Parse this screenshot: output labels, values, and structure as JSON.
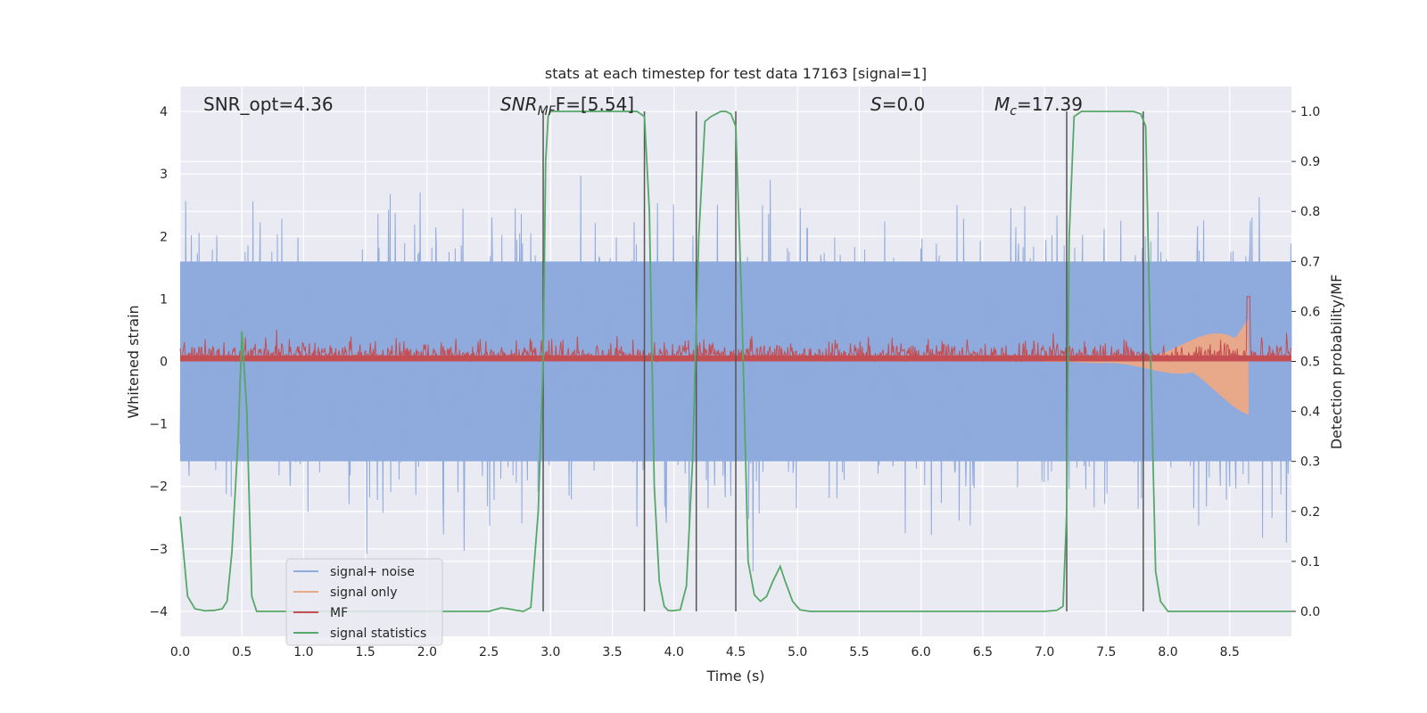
{
  "chart_data": {
    "type": "line",
    "title": "stats at each timestep for test data 17163 [signal=1]",
    "xlabel": "Time (s)",
    "ylabel": "Whitened strain",
    "y2label": "Detection probability/MF",
    "xlim": [
      0.0,
      9.0
    ],
    "ylim": [
      -4.4,
      4.4
    ],
    "y2lim": [
      -0.05,
      1.05
    ],
    "xticks": [
      0.0,
      0.5,
      1.0,
      1.5,
      2.0,
      2.5,
      3.0,
      3.5,
      4.0,
      4.5,
      5.0,
      5.5,
      6.0,
      6.5,
      7.0,
      7.5,
      8.0,
      8.5
    ],
    "xtick_labels": [
      "0.0",
      "0.5",
      "1.0",
      "1.5",
      "2.0",
      "2.5",
      "3.0",
      "3.5",
      "4.0",
      "4.5",
      "5.0",
      "5.5",
      "6.0",
      "6.5",
      "7.0",
      "7.5",
      "8.0",
      "8.5"
    ],
    "yticks": [
      -4,
      -3,
      -2,
      -1,
      0,
      1,
      2,
      3,
      4
    ],
    "ytick_labels": [
      "−4",
      "−3",
      "−2",
      "−1",
      "0",
      "1",
      "2",
      "3",
      "4"
    ],
    "y2ticks": [
      0.0,
      0.1,
      0.2,
      0.3,
      0.4,
      0.5,
      0.6,
      0.7,
      0.8,
      0.9,
      1.0
    ],
    "y2tick_labels": [
      "0.0",
      "0.1",
      "0.2",
      "0.3",
      "0.4",
      "0.5",
      "0.6",
      "0.7",
      "0.8",
      "0.9",
      "1.0"
    ],
    "grid": true,
    "legend_position": "lower-left",
    "annotations": {
      "snr_opt": "SNR_opt=4.36",
      "snr_mf_main": "SNR",
      "snr_mf_sub": "MF",
      "snr_mf_value": "F=[5.54]",
      "s_main": "S",
      "s_value": "=0.0",
      "mc_main": "M",
      "mc_sub": "c",
      "mc_value": "=17.39"
    },
    "series": [
      {
        "name": "signal+ noise",
        "color": "#8faadc",
        "axis": "left",
        "style": "noise band",
        "envelope_upper": 2.5,
        "envelope_lower": -2.5,
        "core_band": [
          -1.6,
          1.6
        ],
        "max_spike": 4.0
      },
      {
        "name": "signal only",
        "color": "#e8a98a",
        "axis": "left",
        "style": "chirp",
        "start_x": 7.0,
        "end_x": 8.65,
        "final_amplitude": 0.9
      },
      {
        "name": "MF",
        "color": "#c44e52",
        "axis": "right",
        "style": "noise band",
        "baseline": 0.5,
        "typical_max": 0.555,
        "max_value": 0.63
      },
      {
        "name": "signal statistics",
        "color": "#55a868",
        "axis": "right",
        "x": [
          0.0,
          0.06,
          0.12,
          0.2,
          0.28,
          0.34,
          0.38,
          0.42,
          0.47,
          0.5,
          0.54,
          0.58,
          0.62,
          0.7,
          1.0,
          1.5,
          2.0,
          2.5,
          2.6,
          2.66,
          2.72,
          2.78,
          2.84,
          2.9,
          2.94,
          2.96,
          2.98,
          3.0,
          3.05,
          3.1,
          3.5,
          3.62,
          3.7,
          3.76,
          3.8,
          3.84,
          3.88,
          3.92,
          3.95,
          3.98,
          4.05,
          4.1,
          4.15,
          4.2,
          4.25,
          4.3,
          4.38,
          4.42,
          4.46,
          4.5,
          4.55,
          4.6,
          4.65,
          4.7,
          4.75,
          4.8,
          4.86,
          4.9,
          4.96,
          5.02,
          5.1,
          5.5,
          6.0,
          6.5,
          7.0,
          7.1,
          7.15,
          7.18,
          7.2,
          7.24,
          7.3,
          7.6,
          7.72,
          7.78,
          7.82,
          7.86,
          7.9,
          7.94,
          8.0,
          8.5,
          9.0
        ],
        "y": [
          0.19,
          0.03,
          0.005,
          0.001,
          0.002,
          0.005,
          0.02,
          0.12,
          0.35,
          0.56,
          0.4,
          0.03,
          0.0,
          0.0,
          0.0,
          0.0,
          0.0,
          0.0,
          0.007,
          0.005,
          0.002,
          0.0,
          0.008,
          0.2,
          0.5,
          0.9,
          0.99,
          1.0,
          1.0,
          1.0,
          1.0,
          1.0,
          1.0,
          0.99,
          0.8,
          0.25,
          0.06,
          0.01,
          0.002,
          0.001,
          0.003,
          0.05,
          0.3,
          0.75,
          0.98,
          0.99,
          1.0,
          1.0,
          0.995,
          0.97,
          0.6,
          0.1,
          0.033,
          0.02,
          0.03,
          0.06,
          0.09,
          0.06,
          0.02,
          0.003,
          0.0,
          0.0,
          0.0,
          0.0,
          0.0,
          0.002,
          0.01,
          0.2,
          0.75,
          0.99,
          1.0,
          1.0,
          1.0,
          0.995,
          0.97,
          0.5,
          0.08,
          0.02,
          0.0,
          0.0,
          0.0
        ]
      }
    ],
    "vertical_markers": [
      2.94,
      3.76,
      4.18,
      4.5,
      7.18,
      7.8
    ],
    "marker_color": "#555555"
  }
}
